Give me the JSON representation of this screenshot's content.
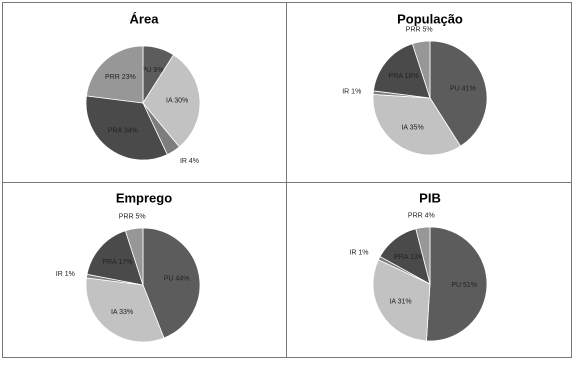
{
  "chart_data": [
    {
      "type": "pie",
      "title": "Área",
      "categories": [
        "PU",
        "IA",
        "IR",
        "PRA",
        "PRR"
      ],
      "values": [
        9,
        30,
        4,
        34,
        23
      ],
      "value_labels": [
        "PU 9%",
        "IA 30%",
        "IR 4%",
        "PRA 34%",
        "PRR 23%"
      ],
      "colors": [
        "#5c5c5c",
        "#c2c2c2",
        "#7d7d7d",
        "#4a4a4a",
        "#979797"
      ]
    },
    {
      "type": "pie",
      "title": "População",
      "categories": [
        "PU",
        "IA",
        "IR",
        "PRA",
        "PRR"
      ],
      "values": [
        41,
        35,
        1,
        18,
        5
      ],
      "value_labels": [
        "PU 41%",
        "IA 35%",
        "IR 1%",
        "PRA 18%",
        "PRR 5%"
      ],
      "colors": [
        "#5c5c5c",
        "#c2c2c2",
        "#7d7d7d",
        "#4a4a4a",
        "#979797"
      ]
    },
    {
      "type": "pie",
      "title": "Emprego",
      "categories": [
        "PU",
        "IA",
        "IR",
        "PRA",
        "PRR"
      ],
      "values": [
        44,
        33,
        1,
        17,
        5
      ],
      "value_labels": [
        "PU 44%",
        "IA 33%",
        "IR 1%",
        "PRA 17%",
        "PRR 5%"
      ],
      "colors": [
        "#5c5c5c",
        "#c2c2c2",
        "#7d7d7d",
        "#4a4a4a",
        "#979797"
      ]
    },
    {
      "type": "pie",
      "title": "PIB",
      "categories": [
        "PU",
        "IA",
        "IR",
        "PRA",
        "PRR"
      ],
      "values": [
        51,
        31,
        1,
        13,
        4
      ],
      "value_labels": [
        "PU 51%",
        "IA 31%",
        "IR 1%",
        "PRA 13%",
        "PRR 4%"
      ],
      "colors": [
        "#5c5c5c",
        "#c2c2c2",
        "#7d7d7d",
        "#4a4a4a",
        "#979797"
      ]
    }
  ]
}
